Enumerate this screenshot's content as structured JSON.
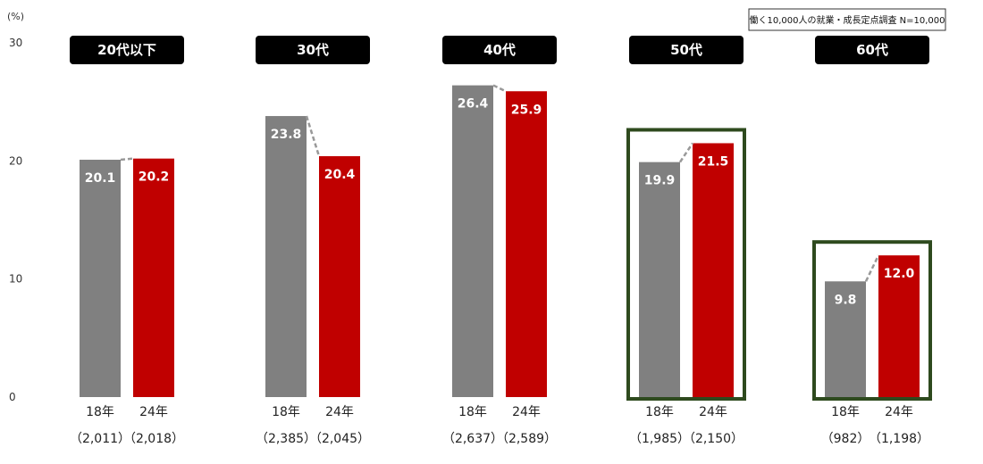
{
  "chart_data": {
    "type": "bar",
    "unit_label": "(%)",
    "note": "働く10,000人の就業・成長定点調査 N=10,000",
    "ylim": [
      0,
      30
    ],
    "yticks": [
      "0",
      "10",
      "20",
      "30"
    ],
    "series": [
      {
        "name": "18年",
        "color": "#808080"
      },
      {
        "name": "24年",
        "color": "#c00000"
      }
    ],
    "groups": [
      {
        "label": "20代以下",
        "values": [
          20.1,
          20.2
        ],
        "value_labels": [
          "20.1",
          "20.2"
        ],
        "year_labels": [
          "18年",
          "24年"
        ],
        "n_labels": [
          "（2,011）",
          "（2,018）"
        ],
        "highlight": false
      },
      {
        "label": "30代",
        "values": [
          23.8,
          20.4
        ],
        "value_labels": [
          "23.8",
          "20.4"
        ],
        "year_labels": [
          "18年",
          "24年"
        ],
        "n_labels": [
          "（2,385）",
          "（2,045）"
        ],
        "highlight": false
      },
      {
        "label": "40代",
        "values": [
          26.4,
          25.9
        ],
        "value_labels": [
          "26.4",
          "25.9"
        ],
        "year_labels": [
          "18年",
          "24年"
        ],
        "n_labels": [
          "（2,637）",
          "（2,589）"
        ],
        "highlight": false
      },
      {
        "label": "50代",
        "values": [
          19.9,
          21.5
        ],
        "value_labels": [
          "19.9",
          "21.5"
        ],
        "year_labels": [
          "18年",
          "24年"
        ],
        "n_labels": [
          "（1,985）",
          "（2,150）"
        ],
        "highlight": true
      },
      {
        "label": "60代",
        "values": [
          9.8,
          12.0
        ],
        "value_labels": [
          "9.8",
          "12.0"
        ],
        "year_labels": [
          "18年",
          "24年"
        ],
        "n_labels": [
          "（982）",
          "（1,198）"
        ],
        "highlight": true
      }
    ],
    "highlight_color": "#2e4a1e",
    "title_box_color": "#000000",
    "connector_color": "#999999"
  }
}
